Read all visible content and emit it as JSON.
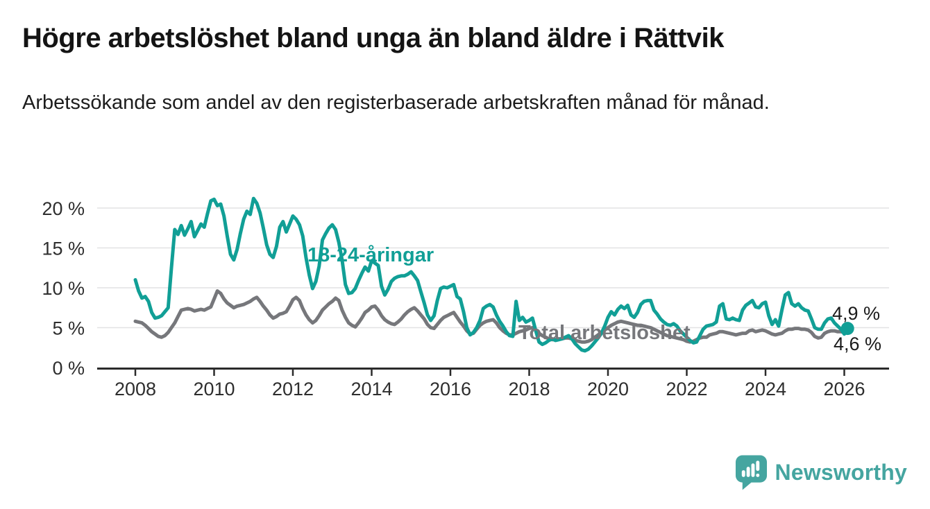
{
  "header": {
    "title": "Högre arbetslöshet bland unga än bland äldre i Rättvik",
    "subtitle": "Arbetssökande som andel av den registerbaserade arbetskraften månad för månad."
  },
  "footer": {
    "brand": "Newsworthy",
    "logo_icon": "bar-chart-speech-bubble-icon"
  },
  "colors": {
    "young_line": "#119F96",
    "total_line": "#76777B",
    "grid_line": "#E2E2E4",
    "axis_line": "#2B2B2B",
    "axis_text": "#2E2E2E",
    "title_text": "#141414",
    "end_label_text": "#1A1A1A",
    "brand_teal": "#45A5A0",
    "background": "#FFFFFF"
  },
  "chart_data": {
    "type": "line",
    "frequency": "monthly",
    "x_start": "2008-01",
    "x_end": "2026-02",
    "x_tick_labels": [
      "2008",
      "2010",
      "2012",
      "2014",
      "2016",
      "2018",
      "2020",
      "2022",
      "2024",
      "2026"
    ],
    "y_ticks": [
      0,
      5,
      10,
      15,
      20
    ],
    "y_tick_labels": [
      "0 %",
      "5 %",
      "10 %",
      "15 %",
      "20 %"
    ],
    "ylim": [
      0,
      22
    ],
    "grid": "horizontal",
    "legend_position": "inline-annotations",
    "annotations": {
      "young": "18-24-åringar",
      "total": "Total arbetslöshet"
    },
    "end_labels": {
      "young": "4,9 %",
      "total": "4,6 %"
    },
    "end_marker": "dot-on-young-series",
    "series": [
      {
        "name": "18-24-åringar",
        "color": "#119F96",
        "values": [
          11.0,
          9.6,
          8.7,
          8.9,
          8.3,
          6.9,
          6.2,
          6.3,
          6.5,
          7.0,
          7.5,
          12.5,
          17.3,
          16.7,
          17.8,
          16.6,
          17.4,
          18.3,
          16.4,
          17.2,
          18.0,
          17.6,
          19.3,
          20.9,
          21.1,
          20.3,
          20.5,
          19.0,
          16.5,
          14.2,
          13.5,
          14.8,
          16.8,
          18.6,
          19.6,
          19.2,
          21.2,
          20.6,
          19.4,
          17.5,
          15.4,
          14.2,
          13.8,
          15.2,
          17.6,
          18.3,
          17.0,
          18.0,
          19.0,
          18.6,
          17.9,
          16.5,
          13.8,
          11.6,
          9.9,
          10.8,
          12.7,
          16.0,
          16.8,
          17.5,
          17.9,
          17.3,
          15.7,
          13.5,
          10.4,
          9.3,
          9.4,
          9.9,
          10.9,
          11.8,
          12.6,
          12.1,
          13.4,
          13.1,
          12.8,
          10.2,
          9.1,
          9.8,
          10.8,
          11.2,
          11.4,
          11.5,
          11.5,
          11.7,
          12.0,
          11.5,
          10.9,
          9.5,
          8.1,
          6.6,
          5.9,
          6.5,
          8.4,
          9.9,
          10.1,
          10.0,
          10.2,
          10.4,
          8.9,
          8.6,
          7.0,
          5.0,
          4.1,
          4.4,
          5.0,
          5.9,
          7.4,
          7.7,
          7.9,
          7.6,
          6.6,
          5.8,
          5.2,
          4.5,
          4.0,
          3.9,
          8.3,
          5.9,
          6.3,
          5.7,
          5.9,
          6.2,
          4.6,
          3.2,
          2.9,
          3.1,
          3.4,
          3.6,
          3.4,
          3.5,
          3.6,
          3.8,
          4.0,
          3.6,
          3.0,
          2.6,
          2.2,
          2.1,
          2.3,
          2.7,
          3.2,
          3.7,
          4.3,
          5.2,
          6.3,
          7.0,
          6.6,
          7.3,
          7.7,
          7.4,
          7.8,
          6.6,
          6.3,
          6.9,
          7.9,
          8.3,
          8.4,
          8.4,
          7.2,
          6.7,
          6.1,
          5.7,
          5.4,
          5.3,
          5.5,
          5.2,
          4.6,
          4.2,
          3.8,
          3.4,
          3.1,
          3.2,
          4.0,
          4.8,
          5.2,
          5.3,
          5.4,
          5.7,
          7.7,
          8.0,
          6.1,
          6.0,
          6.2,
          6.0,
          5.9,
          7.2,
          7.8,
          8.1,
          8.4,
          7.6,
          7.5,
          8.0,
          8.2,
          6.5,
          5.4,
          6.0,
          5.2,
          7.2,
          9.1,
          9.4,
          8.0,
          7.7,
          8.0,
          7.5,
          7.2,
          7.1,
          6.1,
          5.0,
          4.8,
          4.8,
          5.6,
          6.1,
          6.2,
          5.6,
          5.2,
          4.8,
          4.2,
          4.9
        ]
      },
      {
        "name": "Total arbetslöshet",
        "color": "#76777B",
        "values": [
          5.8,
          5.7,
          5.6,
          5.3,
          4.9,
          4.5,
          4.2,
          3.9,
          3.8,
          4.0,
          4.4,
          5.0,
          5.6,
          6.4,
          7.2,
          7.3,
          7.4,
          7.3,
          7.1,
          7.2,
          7.3,
          7.2,
          7.4,
          7.6,
          8.6,
          9.6,
          9.3,
          8.6,
          8.1,
          7.8,
          7.5,
          7.7,
          7.8,
          7.9,
          8.1,
          8.3,
          8.6,
          8.8,
          8.3,
          7.7,
          7.2,
          6.6,
          6.2,
          6.4,
          6.7,
          6.8,
          7.0,
          7.7,
          8.5,
          8.8,
          8.4,
          7.4,
          6.6,
          6.0,
          5.6,
          5.9,
          6.5,
          7.2,
          7.6,
          8.0,
          8.3,
          8.7,
          8.4,
          7.2,
          6.3,
          5.6,
          5.3,
          5.1,
          5.6,
          6.2,
          6.9,
          7.2,
          7.6,
          7.7,
          7.2,
          6.5,
          6.0,
          5.7,
          5.5,
          5.4,
          5.7,
          6.1,
          6.6,
          7.0,
          7.3,
          7.5,
          7.1,
          6.6,
          6.1,
          5.4,
          5.0,
          4.9,
          5.4,
          5.9,
          6.3,
          6.5,
          6.7,
          6.9,
          6.3,
          5.7,
          5.2,
          4.6,
          4.2,
          4.3,
          4.8,
          5.3,
          5.6,
          5.8,
          5.9,
          6.0,
          5.6,
          5.0,
          4.6,
          4.3,
          4.1,
          4.1,
          4.3,
          4.5,
          4.6,
          4.7,
          4.9,
          5.0,
          4.7,
          4.3,
          4.0,
          3.8,
          3.6,
          3.5,
          3.5,
          3.6,
          3.6,
          3.7,
          3.7,
          3.6,
          3.4,
          3.3,
          3.2,
          3.2,
          3.3,
          3.5,
          3.8,
          4.1,
          4.4,
          4.7,
          5.0,
          5.3,
          5.5,
          5.7,
          5.8,
          5.7,
          5.6,
          5.5,
          5.4,
          5.3,
          5.3,
          5.2,
          5.1,
          5.0,
          4.8,
          4.6,
          4.4,
          4.2,
          4.0,
          3.9,
          3.8,
          3.7,
          3.6,
          3.5,
          3.3,
          3.2,
          3.3,
          3.5,
          3.7,
          3.8,
          3.8,
          4.1,
          4.2,
          4.3,
          4.5,
          4.5,
          4.4,
          4.3,
          4.2,
          4.1,
          4.2,
          4.3,
          4.3,
          4.6,
          4.7,
          4.5,
          4.6,
          4.7,
          4.6,
          4.4,
          4.2,
          4.1,
          4.2,
          4.3,
          4.6,
          4.8,
          4.8,
          4.9,
          4.9,
          4.8,
          4.8,
          4.7,
          4.4,
          3.9,
          3.7,
          3.8,
          4.3,
          4.5,
          4.6,
          4.6,
          4.5,
          4.5,
          4.4,
          4.6
        ]
      }
    ]
  }
}
